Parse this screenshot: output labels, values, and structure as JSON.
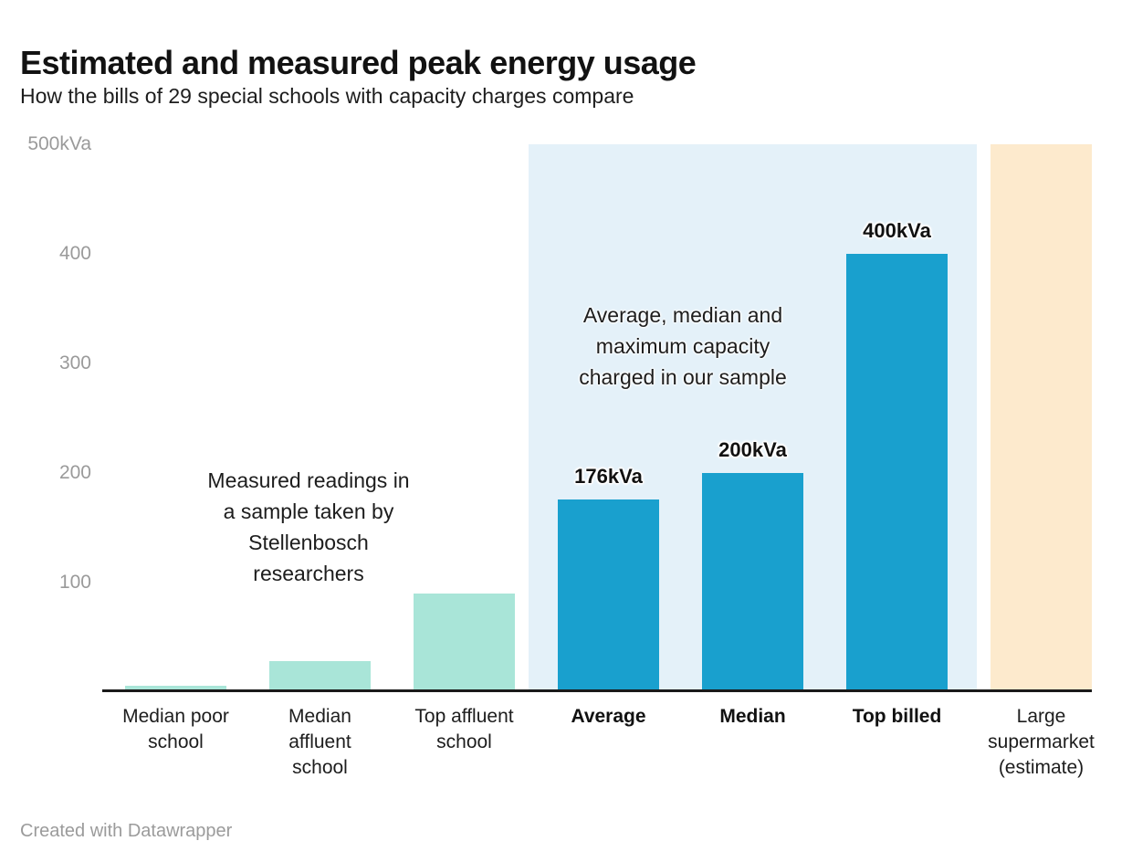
{
  "header": {
    "title": "Estimated and measured peak energy usage",
    "subtitle": "How the bills of 29 special schools with capacity charges compare"
  },
  "footer": {
    "credit": "Created with Datawrapper"
  },
  "chart_data": {
    "type": "bar",
    "title": "Estimated and measured peak energy usage",
    "subtitle": "How the bills of 29 special schools with capacity charges compare",
    "unit": "kVa",
    "ylim": [
      0,
      500
    ],
    "grid": false,
    "y_ticks": [
      {
        "value": 500,
        "label": "500kVa"
      },
      {
        "value": 400,
        "label": "400"
      },
      {
        "value": 300,
        "label": "300"
      },
      {
        "value": 200,
        "label": "200"
      },
      {
        "value": 100,
        "label": "100"
      }
    ],
    "categories": [
      "Median poor school",
      "Median affluent school",
      "Top affluent school",
      "Average",
      "Median",
      "Top billed",
      "Large supermarket (estimate)"
    ],
    "columns": [
      {
        "label": "Median poor\nschool",
        "value": 6,
        "display_label": "",
        "color": "measured",
        "bold": false
      },
      {
        "label": "Median\naffluent\nschool",
        "value": 28,
        "display_label": "",
        "color": "measured",
        "bold": false
      },
      {
        "label": "Top affluent\nschool",
        "value": 90,
        "display_label": "",
        "color": "measured",
        "bold": false
      },
      {
        "label": "Average",
        "value": 176,
        "display_label": "176kVa",
        "color": "billed",
        "bold": true
      },
      {
        "label": "Median",
        "value": 200,
        "display_label": "200kVa",
        "color": "billed",
        "bold": true
      },
      {
        "label": "Top billed",
        "value": 400,
        "display_label": "400kVa",
        "color": "billed",
        "bold": true
      },
      {
        "label": "Large\nsupermarket\n(estimate)",
        "value": 500,
        "display_label": "",
        "color": "estimate",
        "bold": false
      }
    ],
    "highlight": {
      "from_index": 3,
      "to_index": 5,
      "top_value": 500
    },
    "annotations": [
      {
        "text": "Measured readings in\na sample taken by\nStellenbosch\nresearchers",
        "center_x": 338,
        "top": 509
      },
      {
        "text": "Average, median and\nmaximum capacity\ncharged in our sample",
        "center_x": 748,
        "top": 328
      }
    ],
    "colors": {
      "measured": "#a9e5d8",
      "billed": "#19a0ce",
      "estimate": "#fdeacd",
      "highlight_band": "#e4f1f9",
      "axis_text": "#9a9a9a",
      "baseline": "#1a1a1a",
      "text": "#1d1d1d"
    }
  }
}
